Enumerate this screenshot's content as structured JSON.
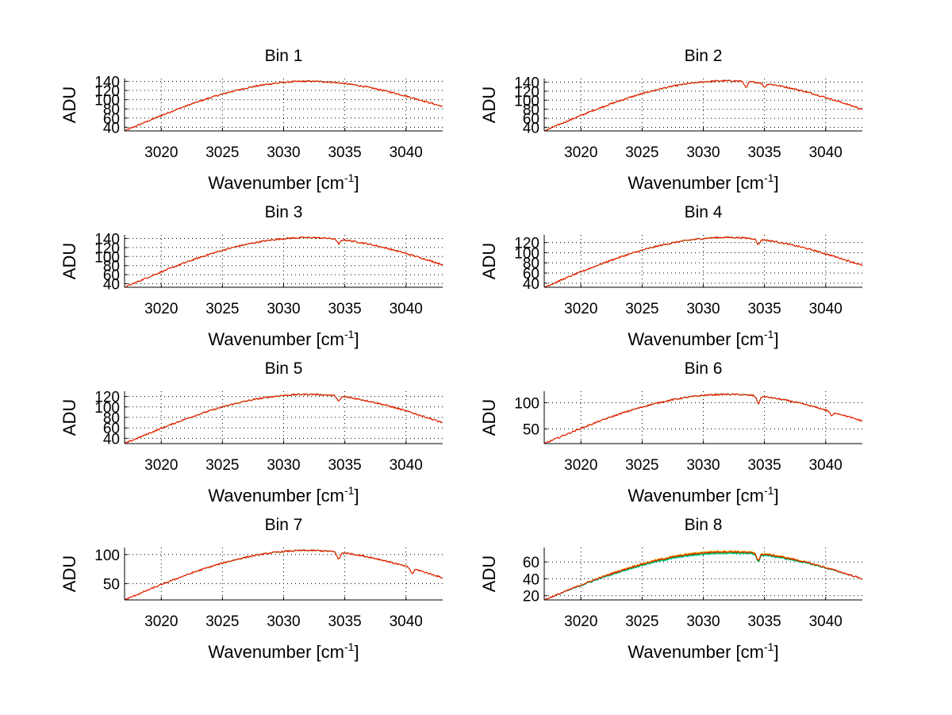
{
  "figure": {
    "background": "#ffffff",
    "series_colors": [
      "#00bfbf",
      "#00c000",
      "#e0c000",
      "#ff0000"
    ]
  },
  "chart_data": [
    {
      "type": "line",
      "title": "Bin 1",
      "xlabel": "Wavenumber [cm-1]",
      "xlabel_main": "Wavenumber [cm",
      "xlabel_sup": "-1",
      "xlabel_end": "]",
      "ylabel": "ADU",
      "xlim": [
        3017,
        3043
      ],
      "ylim": [
        32,
        146
      ],
      "xticks": [
        3020,
        3025,
        3030,
        3035,
        3040
      ],
      "yticks": [
        40,
        60,
        80,
        100,
        120,
        140
      ],
      "grid": true,
      "profile": {
        "start": 3017,
        "peak_x": 3032,
        "peak_y": 140,
        "end": 3043,
        "start_y": 32,
        "end_y": 85,
        "dips": []
      }
    },
    {
      "type": "line",
      "title": "Bin 2",
      "xlabel": "Wavenumber [cm-1]",
      "xlabel_main": "Wavenumber [cm",
      "xlabel_sup": "-1",
      "xlabel_end": "]",
      "ylabel": "ADU",
      "xlim": [
        3017,
        3043
      ],
      "ylim": [
        32,
        148
      ],
      "xticks": [
        3020,
        3025,
        3030,
        3035,
        3040
      ],
      "yticks": [
        40,
        60,
        80,
        100,
        120,
        140
      ],
      "grid": true,
      "profile": {
        "start": 3017,
        "peak_x": 3032,
        "peak_y": 143,
        "end": 3043,
        "start_y": 32,
        "end_y": 80,
        "dips": [
          [
            3033.5,
            14
          ],
          [
            3035,
            8
          ]
        ]
      }
    },
    {
      "type": "line",
      "title": "Bin 3",
      "xlabel": "Wavenumber [cm-1]",
      "xlabel_main": "Wavenumber [cm",
      "xlabel_sup": "-1",
      "xlabel_end": "]",
      "ylabel": "ADU",
      "xlim": [
        3017,
        3043
      ],
      "ylim": [
        32,
        148
      ],
      "xticks": [
        3020,
        3025,
        3030,
        3035,
        3040
      ],
      "yticks": [
        40,
        60,
        80,
        100,
        120,
        140
      ],
      "grid": true,
      "profile": {
        "start": 3017,
        "peak_x": 3032,
        "peak_y": 142,
        "end": 3043,
        "start_y": 32,
        "end_y": 82,
        "dips": [
          [
            3034.5,
            10
          ]
        ]
      }
    },
    {
      "type": "line",
      "title": "Bin 4",
      "xlabel": "Wavenumber [cm-1]",
      "xlabel_main": "Wavenumber [cm",
      "xlabel_sup": "-1",
      "xlabel_end": "]",
      "ylabel": "ADU",
      "xlim": [
        3017,
        3043
      ],
      "ylim": [
        32,
        135
      ],
      "xticks": [
        3020,
        3025,
        3030,
        3035,
        3040
      ],
      "yticks": [
        40,
        60,
        80,
        100,
        120
      ],
      "grid": true,
      "profile": {
        "start": 3017,
        "peak_x": 3032,
        "peak_y": 130,
        "end": 3043,
        "start_y": 32,
        "end_y": 75,
        "dips": [
          [
            3034.5,
            10
          ]
        ]
      }
    },
    {
      "type": "line",
      "title": "Bin 5",
      "xlabel": "Wavenumber [cm-1]",
      "xlabel_main": "Wavenumber [cm",
      "xlabel_sup": "-1",
      "xlabel_end": "]",
      "ylabel": "ADU",
      "xlim": [
        3017,
        3043
      ],
      "ylim": [
        30,
        130
      ],
      "xticks": [
        3020,
        3025,
        3030,
        3035,
        3040
      ],
      "yticks": [
        40,
        60,
        80,
        100,
        120
      ],
      "grid": true,
      "profile": {
        "start": 3017,
        "peak_x": 3032,
        "peak_y": 124,
        "end": 3043,
        "start_y": 30,
        "end_y": 70,
        "dips": [
          [
            3034.5,
            10
          ]
        ]
      }
    },
    {
      "type": "line",
      "title": "Bin 6",
      "xlabel": "Wavenumber [cm-1]",
      "xlabel_main": "Wavenumber [cm",
      "xlabel_sup": "-1",
      "xlabel_end": "]",
      "ylabel": "ADU",
      "xlim": [
        3017,
        3043
      ],
      "ylim": [
        22,
        122
      ],
      "xticks": [
        3020,
        3025,
        3030,
        3035,
        3040
      ],
      "yticks": [
        50,
        100
      ],
      "grid": true,
      "profile": {
        "start": 3017,
        "peak_x": 3032,
        "peak_y": 116,
        "end": 3043,
        "start_y": 22,
        "end_y": 65,
        "dips": [
          [
            3034.5,
            14
          ],
          [
            3040.5,
            8
          ]
        ]
      }
    },
    {
      "type": "line",
      "title": "Bin 7",
      "xlabel": "Wavenumber [cm-1]",
      "xlabel_main": "Wavenumber [cm",
      "xlabel_sup": "-1",
      "xlabel_end": "]",
      "ylabel": "ADU",
      "xlim": [
        3017,
        3043
      ],
      "ylim": [
        22,
        112
      ],
      "xticks": [
        3020,
        3025,
        3030,
        3035,
        3040
      ],
      "yticks": [
        50,
        100
      ],
      "grid": true,
      "profile": {
        "start": 3017,
        "peak_x": 3032,
        "peak_y": 107,
        "end": 3043,
        "start_y": 22,
        "end_y": 60,
        "dips": [
          [
            3034.5,
            12
          ],
          [
            3040.5,
            9
          ]
        ]
      }
    },
    {
      "type": "line",
      "title": "Bin 8",
      "xlabel": "Wavenumber [cm-1]",
      "xlabel_main": "Wavenumber [cm",
      "xlabel_sup": "-1",
      "xlabel_end": "]",
      "ylabel": "ADU",
      "xlim": [
        3017,
        3043
      ],
      "ylim": [
        15,
        77
      ],
      "xticks": [
        3020,
        3025,
        3030,
        3035,
        3040
      ],
      "yticks": [
        20,
        40,
        60
      ],
      "grid": true,
      "profile": {
        "start": 3017,
        "peak_x": 3032,
        "peak_y": 72,
        "end": 3043,
        "start_y": 15,
        "end_y": 40,
        "dips": [
          [
            3034.5,
            8
          ]
        ]
      },
      "series_offsets": [
        -2,
        -1,
        1,
        0
      ]
    }
  ]
}
